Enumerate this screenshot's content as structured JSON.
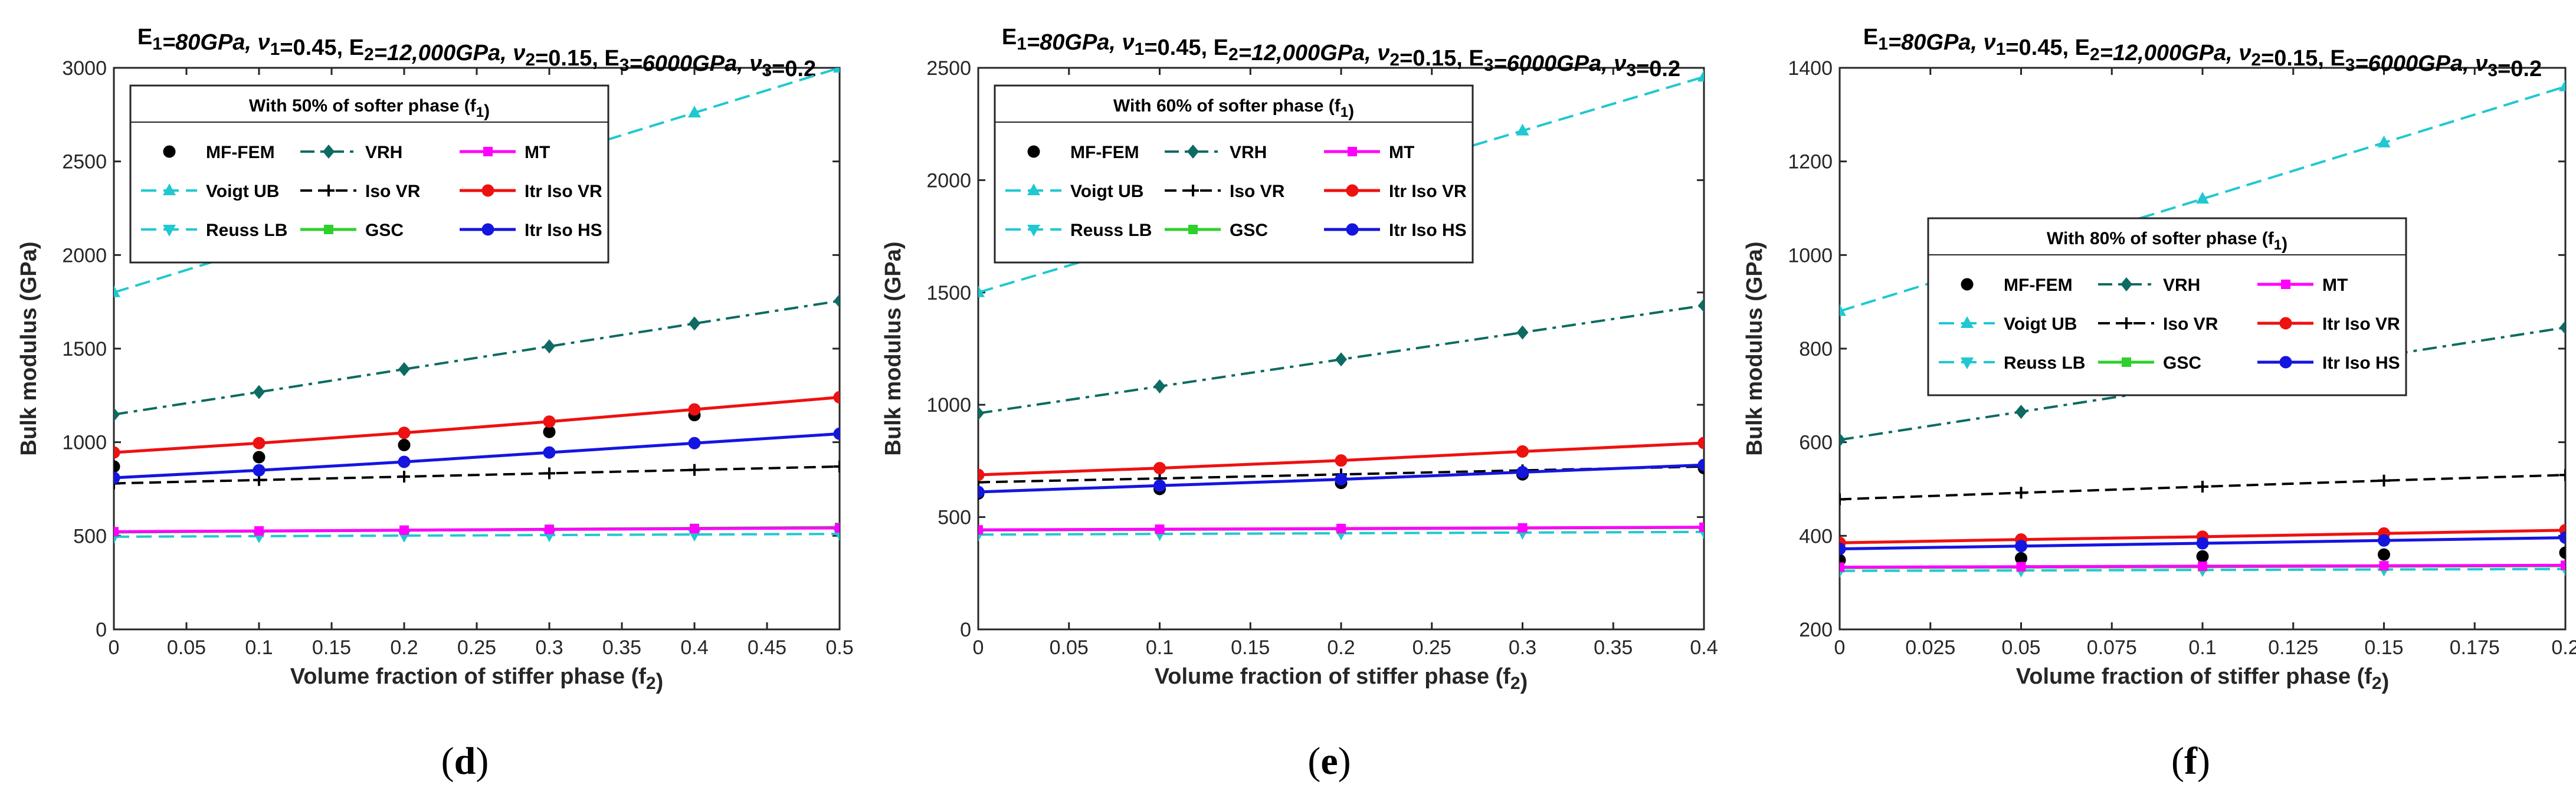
{
  "colors": {
    "MF-FEM": "#000000",
    "Voigt UB": "#20c8d0",
    "Reuss LB": "#20c8d0",
    "VRH": "#0d6b63",
    "Iso VR": "#000000",
    "GSC": "#2ed02e",
    "MT": "#ff00ff",
    "Itr Iso VR": "#ee1111",
    "Itr Iso HS": "#1515e0"
  },
  "legend_order": [
    "MF-FEM",
    "VRH",
    "MT",
    "Voigt UB",
    "Iso VR",
    "Itr Iso VR",
    "Reuss LB",
    "GSC",
    "Itr Iso HS"
  ],
  "chart_data": [
    {
      "type": "line",
      "panel_label": "(d)",
      "title": "E1=80GPa, ν1=0.45, E2=12,000GPa, ν2=0.15, E3=6000GPa, ν3=0.2",
      "xlabel": "Volume fraction of stiffer phase (f2)",
      "ylabel": "Bulk modulus (GPa)",
      "legend_title": "With 50% of softer phase (f1)",
      "legend_position": "top-left",
      "xlim": [
        0,
        0.5
      ],
      "ylim": [
        0,
        3000
      ],
      "xticks": [
        0,
        0.05,
        0.1,
        0.15,
        0.2,
        0.25,
        0.3,
        0.35,
        0.4,
        0.45,
        0.5
      ],
      "yticks": [
        0,
        500,
        1000,
        1500,
        2000,
        2500,
        3000
      ],
      "xtick_labels": [
        "0",
        "0.05",
        "0.1",
        "0.15",
        "0.2",
        "0.25",
        "0.3",
        "0.35",
        "0.4",
        "0.45",
        "0.5"
      ],
      "ytick_labels": [
        "0",
        "500",
        "1000",
        "1500",
        "2000",
        "2500",
        "3000"
      ],
      "x": [
        0,
        0.1,
        0.2,
        0.3,
        0.4,
        0.5
      ],
      "series": [
        {
          "name": "MF-FEM",
          "values": [
            870,
            920,
            985,
            1055,
            1145,
            1240
          ]
        },
        {
          "name": "Voigt UB",
          "values": [
            1800,
            2040,
            2280,
            2520,
            2760,
            3000
          ]
        },
        {
          "name": "Reuss LB",
          "values": [
            495,
            498,
            501,
            504,
            507,
            510
          ]
        },
        {
          "name": "VRH",
          "values": [
            1148,
            1268,
            1390,
            1512,
            1634,
            1755
          ]
        },
        {
          "name": "Iso VR",
          "values": [
            780,
            798,
            816,
            834,
            852,
            870
          ]
        },
        {
          "name": "GSC",
          "values": [
            520,
            525,
            530,
            535,
            540,
            545
          ]
        },
        {
          "name": "MT",
          "values": [
            522,
            526,
            530,
            534,
            538,
            542
          ]
        },
        {
          "name": "Itr Iso VR",
          "values": [
            945,
            995,
            1050,
            1110,
            1175,
            1240
          ]
        },
        {
          "name": "Itr Iso HS",
          "values": [
            810,
            850,
            895,
            945,
            995,
            1045
          ]
        }
      ]
    },
    {
      "type": "line",
      "panel_label": "(e)",
      "title": "E1=80GPa, ν1=0.45, E2=12,000GPa, ν2=0.15, E3=6000GPa, ν3=0.2",
      "xlabel": "Volume fraction of stiffer phase (f2)",
      "ylabel": "Bulk modulus (GPa)",
      "legend_title": "With 60% of softer phase (f1)",
      "legend_position": "top-left",
      "xlim": [
        0,
        0.4
      ],
      "ylim": [
        0,
        2500
      ],
      "xticks": [
        0,
        0.05,
        0.1,
        0.15,
        0.2,
        0.25,
        0.3,
        0.35,
        0.4
      ],
      "yticks": [
        0,
        500,
        1000,
        1500,
        2000,
        2500
      ],
      "xtick_labels": [
        "0",
        "0.05",
        "0.1",
        "0.15",
        "0.2",
        "0.25",
        "0.3",
        "0.35",
        "0.4"
      ],
      "ytick_labels": [
        "0",
        "500",
        "1000",
        "1500",
        "2000",
        "2500"
      ],
      "x": [
        0,
        0.1,
        0.2,
        0.3,
        0.4
      ],
      "series": [
        {
          "name": "MF-FEM",
          "values": [
            605,
            625,
            652,
            690,
            718
          ]
        },
        {
          "name": "Voigt UB",
          "values": [
            1500,
            1740,
            1980,
            2220,
            2460
          ]
        },
        {
          "name": "Reuss LB",
          "values": [
            422,
            425,
            428,
            431,
            434
          ]
        },
        {
          "name": "VRH",
          "values": [
            962,
            1082,
            1202,
            1322,
            1442
          ]
        },
        {
          "name": "Iso VR",
          "values": [
            655,
            672,
            690,
            708,
            725
          ]
        },
        {
          "name": "GSC",
          "values": [
            442,
            445,
            448,
            451,
            454
          ]
        },
        {
          "name": "MT",
          "values": [
            443,
            446,
            449,
            452,
            455
          ]
        },
        {
          "name": "Itr Iso VR",
          "values": [
            688,
            718,
            752,
            792,
            830
          ]
        },
        {
          "name": "Itr Iso HS",
          "values": [
            612,
            640,
            668,
            700,
            732
          ]
        }
      ]
    },
    {
      "type": "line",
      "panel_label": "(f)",
      "title": "E1=80GPa, ν1=0.45, E2=12,000GPa, ν2=0.15, E3=6000GPa, ν3=0.2",
      "xlabel": "Volume fraction of stiffer phase (f2)",
      "ylabel": "Bulk modulus (GPa)",
      "legend_title": "With 80% of softer phase (f1)",
      "legend_position": "center",
      "xlim": [
        0,
        0.2
      ],
      "ylim": [
        200,
        1400
      ],
      "xticks": [
        0,
        0.025,
        0.05,
        0.075,
        0.1,
        0.125,
        0.15,
        0.175,
        0.2
      ],
      "yticks": [
        200,
        400,
        600,
        800,
        1000,
        1200,
        1400
      ],
      "xtick_labels": [
        "0",
        "0.025",
        "0.05",
        "0.075",
        "0.1",
        "0.125",
        "0.15",
        "0.175",
        "0.2"
      ],
      "ytick_labels": [
        "200",
        "400",
        "600",
        "800",
        "1000",
        "1200",
        "1400"
      ],
      "x": [
        0,
        0.05,
        0.1,
        0.15,
        0.2
      ],
      "series": [
        {
          "name": "MF-FEM",
          "values": [
            348,
            352,
            356,
            360,
            364
          ]
        },
        {
          "name": "Voigt UB",
          "values": [
            880,
            1000,
            1120,
            1240,
            1360
          ]
        },
        {
          "name": "Reuss LB",
          "values": [
            325,
            326,
            327,
            328,
            329
          ]
        },
        {
          "name": "VRH",
          "values": [
            605,
            665,
            725,
            785,
            845
          ]
        },
        {
          "name": "Iso VR",
          "values": [
            478,
            492,
            505,
            518,
            530
          ]
        },
        {
          "name": "GSC",
          "values": [
            332,
            333,
            334,
            335,
            336
          ]
        },
        {
          "name": "MT",
          "values": [
            333,
            334,
            335,
            336,
            337
          ]
        },
        {
          "name": "Itr Iso VR",
          "values": [
            385,
            392,
            398,
            405,
            412
          ]
        },
        {
          "name": "Itr Iso HS",
          "values": [
            372,
            378,
            384,
            390,
            396
          ]
        }
      ]
    }
  ]
}
